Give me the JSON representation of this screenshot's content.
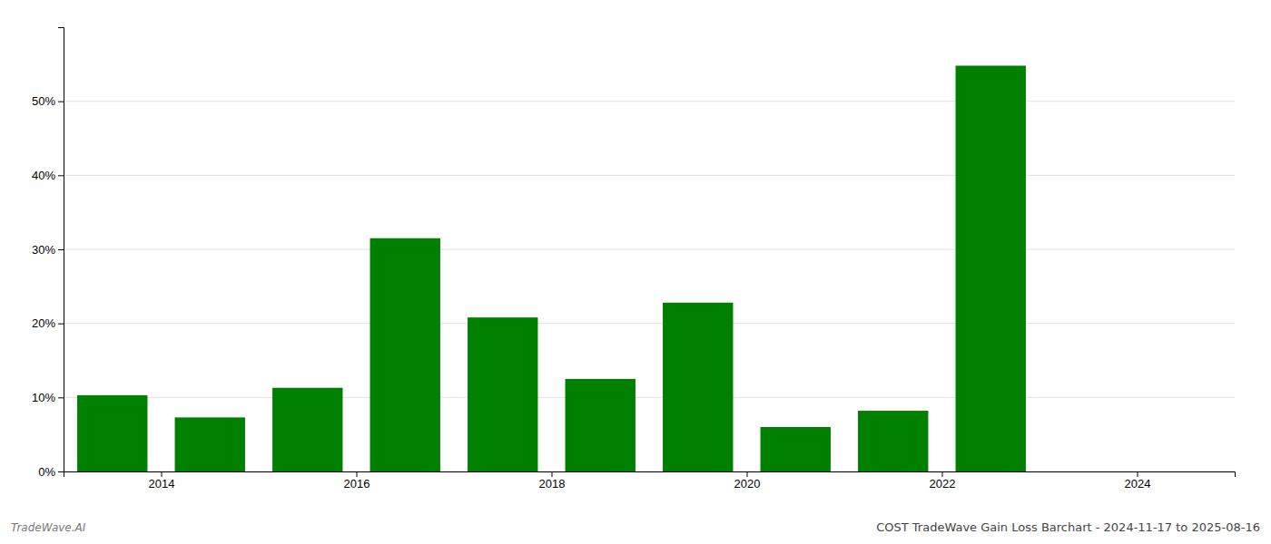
{
  "chart_data": {
    "type": "bar",
    "title": "COST TradeWave Gain Loss Barchart - 2024-11-17 to 2025-08-16",
    "annotations": [
      "TradeWave.AI"
    ],
    "x": [
      2013.5,
      2014.5,
      2015.5,
      2016.5,
      2017.5,
      2018.5,
      2019.5,
      2020.5,
      2021.5,
      2022.5
    ],
    "values": [
      0.103,
      0.073,
      0.113,
      0.315,
      0.208,
      0.125,
      0.228,
      0.06,
      0.082,
      0.548
    ],
    "color": "#008000",
    "xlim": [
      2013.0,
      2025.0
    ],
    "xticks": [
      2014,
      2016,
      2018,
      2020,
      2022,
      2024
    ],
    "ylim": [
      0,
      0.6
    ],
    "yticks": [
      {
        "value": 0.0,
        "label": "0%"
      },
      {
        "value": 0.1,
        "label": "10%"
      },
      {
        "value": 0.2,
        "label": "20%"
      },
      {
        "value": 0.3,
        "label": "30%"
      },
      {
        "value": 0.4,
        "label": "40%"
      },
      {
        "value": 0.5,
        "label": "50%"
      }
    ],
    "grid": true
  }
}
